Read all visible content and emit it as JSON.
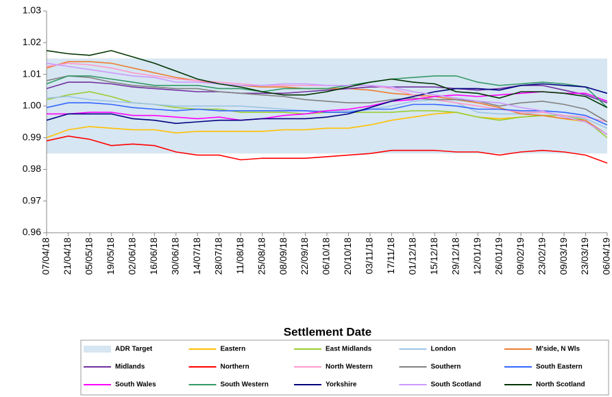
{
  "chart_data": {
    "type": "line",
    "x_label": "Settlement Date",
    "categories": [
      "07/04/18",
      "21/04/18",
      "05/05/18",
      "19/05/18",
      "02/06/18",
      "16/06/18",
      "30/06/18",
      "14/07/18",
      "28/07/18",
      "11/08/18",
      "25/08/18",
      "08/09/18",
      "22/09/18",
      "06/10/18",
      "20/10/18",
      "03/11/18",
      "17/11/18",
      "01/12/18",
      "15/12/18",
      "29/12/18",
      "12/01/19",
      "26/01/19",
      "09/02/19",
      "23/02/19",
      "09/03/19",
      "23/03/19",
      "06/04/19"
    ],
    "ylim": [
      0.96,
      1.03
    ],
    "yticks": [
      0.96,
      0.97,
      0.98,
      {
        "value": 1,
        "label": "1.00"
      },
      0.99,
      1.01,
      1.02,
      1.03
    ],
    "legend": "bottom",
    "band": {
      "name": "ADR Target",
      "color": "#d6e6f2",
      "low": 0.985,
      "high": 1.015
    },
    "series": [
      {
        "name": "Eastern",
        "color": "#ffc000",
        "values": [
          0.99,
          0.9925,
          0.9935,
          0.993,
          0.9925,
          0.9925,
          0.9915,
          0.992,
          0.992,
          0.992,
          0.992,
          0.9925,
          0.9925,
          0.993,
          0.993,
          0.994,
          0.9955,
          0.9965,
          0.9975,
          0.998,
          0.9965,
          0.996,
          0.9965,
          0.997,
          0.996,
          0.995,
          0.991
        ]
      },
      {
        "name": "East Midlands",
        "color": "#9acd32",
        "values": [
          1.002,
          1.0035,
          1.0045,
          1.003,
          1.001,
          1.0005,
          0.9995,
          0.999,
          0.999,
          0.998,
          0.998,
          0.998,
          0.9975,
          0.998,
          0.998,
          0.998,
          0.998,
          0.9985,
          0.9985,
          0.998,
          0.9965,
          0.9955,
          0.9965,
          0.997,
          0.997,
          0.9955,
          0.99
        ]
      },
      {
        "name": "London",
        "color": "#9dc3e6",
        "values": [
          1.0025,
          1.003,
          1.002,
          1.0015,
          1.001,
          1.0005,
          1,
          1,
          1,
          1,
          0.9995,
          0.999,
          0.9985,
          0.9985,
          0.9985,
          0.999,
          1,
          1.0015,
          1.002,
          1.001,
          0.998,
          0.9975,
          0.9975,
          0.998,
          0.997,
          0.996,
          0.993
        ]
      },
      {
        "name": "M'side, N Wls",
        "color": "#ed7d31",
        "values": [
          1.012,
          1.014,
          1.014,
          1.0135,
          1.012,
          1.0105,
          1.009,
          1.008,
          1.007,
          1.0065,
          1.006,
          1.006,
          1.0055,
          1.0055,
          1.0055,
          1.005,
          1.004,
          1.0035,
          1.003,
          1.002,
          1.001,
          0.9995,
          0.9975,
          0.997,
          0.996,
          0.9955,
          0.991
        ]
      },
      {
        "name": "Midlands",
        "color": "#7030a0",
        "values": [
          1.0055,
          1.0075,
          1.0075,
          1.007,
          1.006,
          1.0055,
          1.005,
          1.0045,
          1.0045,
          1.004,
          1.004,
          1.004,
          1.0045,
          1.005,
          1.0055,
          1.006,
          1.006,
          1.006,
          1.006,
          1.0055,
          1.005,
          1.0055,
          1.0065,
          1.0065,
          1.005,
          1.0035,
          1.001
        ]
      },
      {
        "name": "Northern",
        "color": "#ff0000",
        "values": [
          0.989,
          0.9905,
          0.9895,
          0.9875,
          0.988,
          0.9875,
          0.9855,
          0.9845,
          0.9845,
          0.983,
          0.9835,
          0.9835,
          0.9835,
          0.984,
          0.9845,
          0.985,
          0.986,
          0.986,
          0.986,
          0.9855,
          0.9855,
          0.9845,
          0.9855,
          0.986,
          0.9855,
          0.9845,
          0.982
        ]
      },
      {
        "name": "North Western",
        "color": "#ff99cc",
        "values": [
          1.0125,
          1.0135,
          1.013,
          1.012,
          1.0105,
          1.0095,
          1.0085,
          1.008,
          1.0075,
          1.007,
          1.0065,
          1.0065,
          1.0065,
          1.0065,
          1.0065,
          1.0065,
          1.0055,
          1.0035,
          1.002,
          1.001,
          1,
          0.999,
          0.998,
          0.998,
          0.997,
          0.9965,
          0.995
        ]
      },
      {
        "name": "Southern",
        "color": "#808080",
        "values": [
          1.008,
          1.0095,
          1.009,
          1.0075,
          1.0065,
          1.006,
          1.0055,
          1.0055,
          1.0045,
          1.004,
          1.0035,
          1.003,
          1.002,
          1.0015,
          1.001,
          1.001,
          1.002,
          1.0025,
          1.002,
          1.002,
          1.0015,
          1,
          1.001,
          1.0015,
          1.0005,
          0.999,
          0.995
        ]
      },
      {
        "name": "South Eastern",
        "color": "#3366ff",
        "values": [
          0.9995,
          1.001,
          1.001,
          1.0005,
          0.9995,
          0.999,
          0.9985,
          0.999,
          0.9985,
          0.9985,
          0.9985,
          0.9985,
          0.9985,
          0.998,
          0.998,
          0.999,
          0.999,
          1.0005,
          1.0005,
          1,
          0.999,
          0.999,
          0.9985,
          0.9985,
          0.998,
          0.997,
          0.994
        ]
      },
      {
        "name": "South Wales",
        "color": "#ff00ff",
        "values": [
          0.9975,
          0.9975,
          0.998,
          0.998,
          0.997,
          0.997,
          0.9965,
          0.996,
          0.9965,
          0.9955,
          0.996,
          0.997,
          0.9975,
          0.9985,
          0.999,
          1,
          1.0015,
          1.002,
          1.003,
          1.0035,
          1.003,
          1.0035,
          1.004,
          1.0045,
          1.004,
          1.004,
          1.0015
        ]
      },
      {
        "name": "South Western",
        "color": "#339966",
        "values": [
          1.007,
          1.0095,
          1.0095,
          1.0085,
          1.0075,
          1.0065,
          1.0065,
          1.0065,
          1.0055,
          1.0055,
          1.0045,
          1.0055,
          1.0055,
          1.0055,
          1.0065,
          1.0075,
          1.0085,
          1.009,
          1.0095,
          1.0095,
          1.0075,
          1.0065,
          1.007,
          1.0075,
          1.007,
          1.006,
          0.9995
        ]
      },
      {
        "name": "Yorkshire",
        "color": "#000080",
        "values": [
          0.9955,
          0.9975,
          0.9975,
          0.9975,
          0.996,
          0.9955,
          0.9945,
          0.995,
          0.9955,
          0.9955,
          0.996,
          0.996,
          0.996,
          0.9965,
          0.9975,
          0.9995,
          1.0015,
          1.003,
          1.0045,
          1.0055,
          1.0055,
          1.005,
          1.0065,
          1.007,
          1.0065,
          1.006,
          1.004
        ]
      },
      {
        "name": "South Scotland",
        "color": "#cc99ff",
        "values": [
          1.0135,
          1.0125,
          1.0115,
          1.0105,
          1.0095,
          1.009,
          1.0075,
          1.0075,
          1.007,
          1.0065,
          1.0065,
          1.007,
          1.007,
          1.0065,
          1.0065,
          1.0065,
          1.006,
          1.0045,
          1.0035,
          1.0025,
          1.0015,
          1.001,
          0.9995,
          0.9985,
          0.9965,
          0.995,
          0.991
        ]
      },
      {
        "name": "North Scotland",
        "color": "#003300",
        "values": [
          1.0175,
          1.0165,
          1.016,
          1.0175,
          1.0155,
          1.0135,
          1.011,
          1.0085,
          1.007,
          1.006,
          1.0045,
          1.0035,
          1.0035,
          1.0045,
          1.006,
          1.0075,
          1.0085,
          1.0075,
          1.007,
          1.0045,
          1.004,
          1.0025,
          1.0045,
          1.0045,
          1.004,
          1.003,
          0.9995
        ]
      }
    ]
  }
}
